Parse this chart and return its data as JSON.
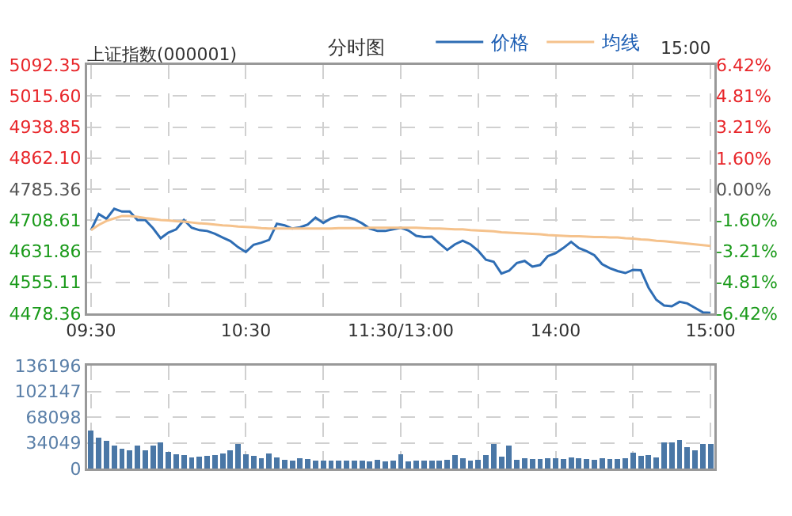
{
  "chart_data": [
    {
      "type": "line",
      "title": "上证指数(000001)",
      "subtitle": "分时图",
      "annotations": [
        "15:00"
      ],
      "categories": [
        "09:30",
        null,
        null,
        null,
        null,
        null,
        null,
        null,
        null,
        null,
        null,
        null,
        null,
        null,
        null,
        null,
        null,
        null,
        null,
        null,
        "10:30",
        null,
        null,
        null,
        null,
        null,
        null,
        null,
        null,
        null,
        null,
        null,
        null,
        null,
        null,
        null,
        null,
        null,
        null,
        null,
        "11:30/13:00",
        null,
        null,
        null,
        null,
        null,
        null,
        null,
        null,
        null,
        null,
        null,
        null,
        null,
        null,
        null,
        null,
        null,
        null,
        null,
        "14:00",
        null,
        null,
        null,
        null,
        null,
        null,
        null,
        null,
        null,
        null,
        null,
        null,
        null,
        null,
        null,
        null,
        null,
        null,
        null,
        "15:00"
      ],
      "series": [
        {
          "name": "价格",
          "color": "#2e6db4",
          "values": [
            4684,
            4724,
            4712,
            4737,
            4730,
            4730,
            4709,
            4709,
            4689,
            4664,
            4678,
            4686,
            4709,
            4690,
            4684,
            4682,
            4675,
            4666,
            4657,
            4642,
            4630,
            4648,
            4653,
            4660,
            4700,
            4696,
            4688,
            4691,
            4698,
            4715,
            4702,
            4713,
            4719,
            4717,
            4711,
            4701,
            4688,
            4682,
            4682,
            4686,
            4690,
            4683,
            4670,
            4667,
            4668,
            4651,
            4635,
            4649,
            4658,
            4649,
            4633,
            4611,
            4606,
            4577,
            4584,
            4603,
            4608,
            4594,
            4598,
            4620,
            4627,
            4640,
            4655,
            4640,
            4632,
            4622,
            4600,
            4590,
            4583,
            4578,
            4586,
            4585,
            4542,
            4512,
            4498,
            4496,
            4507,
            4503,
            4492,
            4481,
            4480
          ]
        },
        {
          "name": "均线",
          "color": "#f5c28c",
          "values": [
            4684,
            4697,
            4707,
            4713,
            4719,
            4719,
            4717,
            4714,
            4712,
            4709,
            4708,
            4706,
            4705,
            4703,
            4701,
            4700,
            4698,
            4696,
            4695,
            4693,
            4692,
            4691,
            4689,
            4688,
            4688,
            4688,
            4688,
            4688,
            4688,
            4688,
            4688,
            4688,
            4689,
            4689,
            4689,
            4689,
            4690,
            4690,
            4690,
            4690,
            4690,
            4690,
            4690,
            4689,
            4688,
            4688,
            4687,
            4686,
            4686,
            4684,
            4683,
            4682,
            4681,
            4679,
            4678,
            4677,
            4676,
            4675,
            4674,
            4672,
            4671,
            4670,
            4669,
            4669,
            4668,
            4667,
            4667,
            4666,
            4666,
            4664,
            4663,
            4661,
            4660,
            4658,
            4657,
            4655,
            4653,
            4651,
            4649,
            4647,
            4645
          ]
        }
      ],
      "ylim": [
        4478.36,
        5092.35
      ],
      "yticks": [
        4478.36,
        4555.11,
        4631.86,
        4708.61,
        4785.36,
        {
          "value": 4862.1,
          "label": "4862.10"
        },
        4938.85,
        {
          "value": 5015.6,
          "label": "5015.60"
        },
        5092.35
      ],
      "y2lim": [
        -6.42,
        6.42
      ],
      "y2ticks": [
        {
          "value": -6.42,
          "label": "-6.42%"
        },
        {
          "value": -4.81,
          "label": "-4.81%"
        },
        {
          "value": -3.21,
          "label": "-3.21%"
        },
        {
          "value": -1.6,
          "label": "-1.60%"
        },
        {
          "value": 0,
          "label": "0.00%"
        },
        {
          "value": 1.6,
          "label": "1.60%"
        },
        {
          "value": 3.21,
          "label": "3.21%"
        },
        {
          "value": 4.81,
          "label": "4.81%"
        },
        {
          "value": 6.42,
          "label": "6.42%"
        }
      ],
      "grid": true,
      "legend": "top"
    },
    {
      "type": "bar",
      "color": "#4a77a6",
      "categories": [
        null,
        null,
        null,
        null,
        null,
        null,
        null,
        null,
        null,
        null,
        null,
        null,
        null,
        null,
        null,
        null,
        null,
        null,
        null,
        null,
        null,
        null,
        null,
        null,
        null,
        null,
        null,
        null,
        null,
        null,
        null,
        null,
        null,
        null,
        null,
        null,
        null,
        null,
        null,
        null,
        null,
        null,
        null,
        null,
        null,
        null,
        null,
        null,
        null,
        null,
        null,
        null,
        null,
        null,
        null,
        null,
        null,
        null,
        null,
        null,
        null,
        null,
        null,
        null,
        null,
        null,
        null,
        null,
        null,
        null,
        null,
        null,
        null,
        null,
        null,
        null,
        null,
        null,
        null,
        null,
        null
      ],
      "values": [
        50000,
        41000,
        37000,
        30000,
        26000,
        24000,
        30000,
        24000,
        30000,
        35000,
        22000,
        19000,
        18000,
        15000,
        16000,
        17000,
        18000,
        20000,
        24000,
        33000,
        19000,
        17000,
        14000,
        20000,
        15000,
        12000,
        11000,
        14000,
        13000,
        11000,
        11000,
        10000,
        10000,
        11000,
        11000,
        10000,
        9000,
        12000,
        9000,
        10000,
        19000,
        9000,
        10000,
        11000,
        11000,
        10000,
        12000,
        18000,
        14000,
        11000,
        12000,
        18000,
        33000,
        16000,
        30000,
        12000,
        14000,
        13000,
        13000,
        14000,
        14000,
        13000,
        15000,
        14000,
        13000,
        12000,
        14000,
        13000,
        13000,
        14000,
        21000,
        17000,
        18000,
        15000,
        35000,
        35000,
        38000,
        28000,
        24000,
        32000,
        33000
      ],
      "ylim": [
        0,
        136196
      ],
      "yticks": [
        0,
        34049,
        68098,
        102147,
        136196
      ],
      "grid": true,
      "tick_labels": "y"
    }
  ]
}
